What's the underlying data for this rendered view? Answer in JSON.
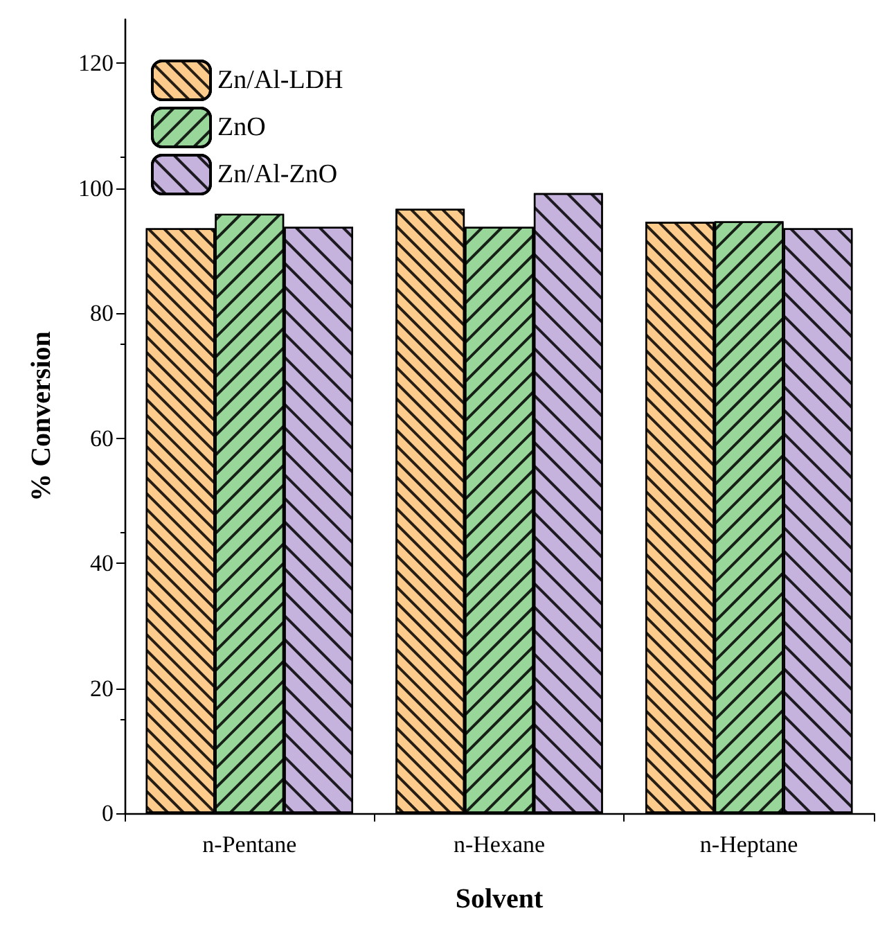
{
  "chart_data": {
    "type": "bar",
    "xlabel": "Solvent",
    "ylabel": "% Conversion",
    "categories": [
      "n-Pentane",
      "n-Hexane",
      "n-Heptane"
    ],
    "series": [
      {
        "name": "Zn/Al-LDH",
        "color": "#fdcb8b",
        "values": [
          93.6,
          96.7,
          94.6
        ]
      },
      {
        "name": "ZnO",
        "color": "#98d69a",
        "values": [
          95.9,
          93.8,
          94.7
        ]
      },
      {
        "name": "Zn/Al-ZnO",
        "color": "#c5b3dd",
        "values": [
          93.8,
          99.2,
          93.6
        ]
      }
    ],
    "ylim": [
      0,
      127
    ],
    "yticks": [
      0,
      20,
      40,
      60,
      80,
      100,
      120
    ],
    "grid": false,
    "legend": "top left"
  }
}
